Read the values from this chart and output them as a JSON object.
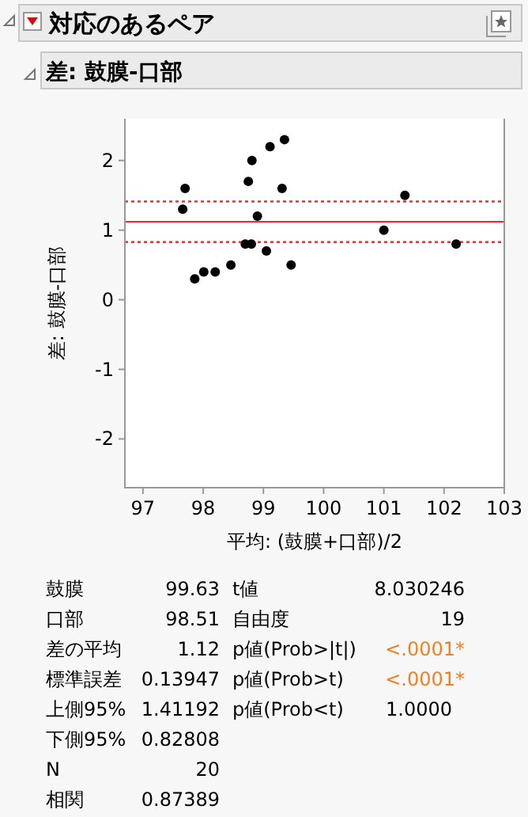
{
  "chart_data": {
    "type": "scatter",
    "title": "対応のあるペア",
    "subtitle": "差: 鼓膜-口部",
    "xlabel": "平均: (鼓膜+口部)/2",
    "ylabel": "差: 鼓膜-口部",
    "x": [
      97.66,
      97.7,
      97.86,
      98.01,
      98.2,
      98.46,
      98.7,
      98.8,
      98.75,
      98.81,
      98.9,
      99.05,
      99.11,
      99.31,
      99.35,
      99.46,
      101.0,
      101.35,
      102.2
    ],
    "series": [
      {
        "color": "#000000",
        "values": [
          1.3,
          1.6,
          0.3,
          0.4,
          0.4,
          0.5,
          0.8,
          0.8,
          1.7,
          2.0,
          1.2,
          0.7,
          2.2,
          1.6,
          2.3,
          0.5,
          1.0,
          1.5,
          0.8
        ]
      }
    ],
    "marker": "circle",
    "xlim": [
      96.7,
      103
    ],
    "xticks": [
      97,
      98,
      99,
      100,
      101,
      102,
      103
    ],
    "ylim": [
      -2.7,
      2.6
    ],
    "yticks": [
      -2,
      -1,
      0,
      1,
      2
    ],
    "ref_lines": [
      {
        "axis": "y",
        "value": 1.12,
        "color": "#e8303a",
        "line_style": "solid"
      },
      {
        "axis": "y",
        "value": 1.41192,
        "color": "#e8303a",
        "line_style": "dotted"
      },
      {
        "axis": "y",
        "value": 0.82808,
        "color": "#e8303a",
        "line_style": "dotted"
      }
    ],
    "annotations": [
      "鼓膜",
      "99.63",
      "口部",
      "98.51",
      "差の平均",
      "1.12",
      "標準誤差",
      "0.13947",
      "上側95%",
      "1.41192",
      "下側95%",
      "0.82808",
      "N",
      "20",
      "相関",
      "0.87389",
      "t値",
      "8.030246",
      "自由度",
      "19",
      "p値(Prob>|t|)",
      "<.0001*",
      "p値(Prob>t)",
      "<.0001*",
      "p値(Prob<t)",
      "1.0000"
    ]
  }
}
